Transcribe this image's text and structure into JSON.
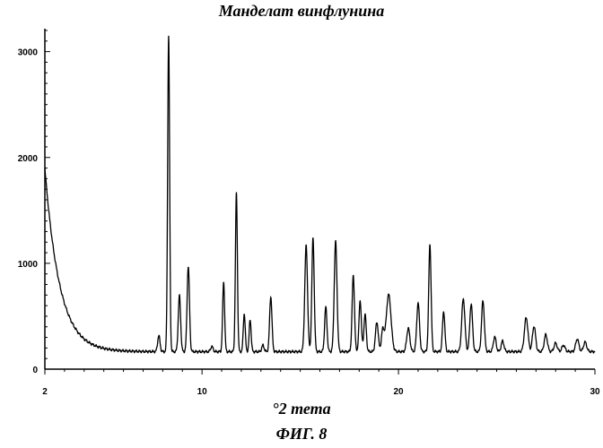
{
  "chart_data": {
    "type": "line",
    "title": "Манделат винфлунина",
    "xlabel": "°2 тета",
    "ylabel": "",
    "caption": "ФИГ. 8",
    "xlim": [
      2,
      30
    ],
    "ylim": [
      0,
      3200
    ],
    "x_ticks": [
      2,
      10,
      20,
      30
    ],
    "y_ticks": [
      0,
      1000,
      2000,
      3000
    ],
    "grid": false,
    "baseline": {
      "start": 1900,
      "decay": 0.75,
      "floor": 165,
      "rise": 0.012,
      "rise_start": 5.5
    },
    "peaks": [
      {
        "x": 7.8,
        "h": 150,
        "w": 0.06
      },
      {
        "x": 8.3,
        "h": 2980,
        "w": 0.05
      },
      {
        "x": 8.85,
        "h": 530,
        "w": 0.06
      },
      {
        "x": 9.3,
        "h": 810,
        "w": 0.06
      },
      {
        "x": 10.5,
        "h": 50,
        "w": 0.06
      },
      {
        "x": 11.1,
        "h": 660,
        "w": 0.05
      },
      {
        "x": 11.75,
        "h": 1500,
        "w": 0.05
      },
      {
        "x": 12.15,
        "h": 360,
        "w": 0.05
      },
      {
        "x": 12.45,
        "h": 300,
        "w": 0.05
      },
      {
        "x": 13.1,
        "h": 60,
        "w": 0.06
      },
      {
        "x": 13.5,
        "h": 520,
        "w": 0.06
      },
      {
        "x": 15.3,
        "h": 1000,
        "w": 0.07
      },
      {
        "x": 15.65,
        "h": 1070,
        "w": 0.06
      },
      {
        "x": 16.3,
        "h": 420,
        "w": 0.06
      },
      {
        "x": 16.8,
        "h": 1040,
        "w": 0.07
      },
      {
        "x": 17.7,
        "h": 720,
        "w": 0.06
      },
      {
        "x": 18.05,
        "h": 480,
        "w": 0.06
      },
      {
        "x": 18.3,
        "h": 350,
        "w": 0.06
      },
      {
        "x": 18.9,
        "h": 280,
        "w": 0.07
      },
      {
        "x": 19.2,
        "h": 200,
        "w": 0.07
      },
      {
        "x": 19.5,
        "h": 540,
        "w": 0.12
      },
      {
        "x": 20.5,
        "h": 220,
        "w": 0.08
      },
      {
        "x": 21.0,
        "h": 460,
        "w": 0.07
      },
      {
        "x": 21.6,
        "h": 1010,
        "w": 0.06
      },
      {
        "x": 22.3,
        "h": 380,
        "w": 0.06
      },
      {
        "x": 23.3,
        "h": 500,
        "w": 0.08
      },
      {
        "x": 23.7,
        "h": 450,
        "w": 0.07
      },
      {
        "x": 24.3,
        "h": 480,
        "w": 0.07
      },
      {
        "x": 24.9,
        "h": 140,
        "w": 0.07
      },
      {
        "x": 25.3,
        "h": 100,
        "w": 0.07
      },
      {
        "x": 26.5,
        "h": 320,
        "w": 0.09
      },
      {
        "x": 26.9,
        "h": 240,
        "w": 0.08
      },
      {
        "x": 27.5,
        "h": 160,
        "w": 0.08
      },
      {
        "x": 28.0,
        "h": 80,
        "w": 0.08
      },
      {
        "x": 28.4,
        "h": 60,
        "w": 0.08
      },
      {
        "x": 29.1,
        "h": 120,
        "w": 0.08
      },
      {
        "x": 29.5,
        "h": 90,
        "w": 0.08
      }
    ]
  }
}
